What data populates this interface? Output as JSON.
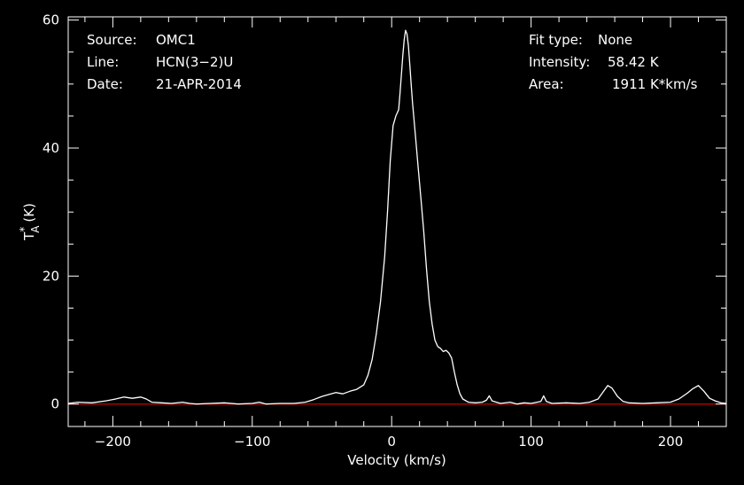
{
  "info": {
    "source_label": "Source:",
    "source_value": "OMC1",
    "line_label": "Line:",
    "line_value": "HCN(3−2)U",
    "date_label": "Date:",
    "date_value": "21-APR-2014",
    "fit_label": "Fit type:",
    "fit_value": "None",
    "intensity_label": "Intensity:",
    "intensity_value": "58.42 K",
    "area_label": "Area:",
    "area_value": "1911 K*km/s"
  },
  "chart_data": {
    "type": "line",
    "xlabel": "Velocity (km/s)",
    "ylabel_main": "T",
    "ylabel_sup": "*",
    "ylabel_sub": "A",
    "ylabel_unit": "(K)",
    "xlim": [
      -232,
      240
    ],
    "ylim": [
      -3.5,
      60.5
    ],
    "xticks": [
      -200,
      -100,
      0,
      100,
      200
    ],
    "xtick_labels": [
      "−200",
      "−100",
      "0",
      "100",
      "200"
    ],
    "yticks": [
      0,
      20,
      40,
      60
    ],
    "ytick_labels": [
      "0",
      "20",
      "40",
      "60"
    ],
    "grid": false,
    "colors": {
      "background": "#000000",
      "trace": "#ffffff",
      "baseline": "#cc0000"
    },
    "series": [
      {
        "x": [
          -232,
          -225,
          -215,
          -205,
          -198,
          -192,
          -186,
          -180,
          -176,
          -172,
          -165,
          -158,
          -150,
          -145,
          -140,
          -130,
          -120,
          -110,
          -100,
          -95,
          -90,
          -80,
          -70,
          -62,
          -56,
          -50,
          -45,
          -40,
          -35,
          -30,
          -25,
          -20,
          -17,
          -14,
          -11,
          -8,
          -5,
          -3,
          -1,
          1,
          3,
          5,
          6,
          7,
          8,
          9,
          10,
          11,
          12,
          13,
          14,
          15,
          17,
          19,
          21,
          23,
          25,
          27,
          29,
          31,
          33,
          35,
          37,
          39,
          41,
          43,
          45,
          47,
          49,
          51,
          55,
          60,
          65,
          68,
          70,
          72,
          78,
          85,
          90,
          95,
          100,
          107,
          109,
          111,
          115,
          125,
          135,
          142,
          148,
          152,
          155,
          158,
          162,
          166,
          170,
          180,
          190,
          200,
          206,
          212,
          216,
          220,
          224,
          228,
          232,
          236,
          240
        ],
        "y": [
          0.1,
          0.3,
          0.2,
          0.5,
          0.8,
          1.1,
          0.9,
          1.1,
          0.8,
          0.3,
          0.2,
          0.1,
          0.3,
          0.1,
          0.0,
          0.1,
          0.2,
          0.0,
          0.1,
          0.3,
          0.0,
          0.1,
          0.1,
          0.3,
          0.7,
          1.2,
          1.5,
          1.8,
          1.6,
          2.0,
          2.3,
          3.0,
          4.5,
          7.0,
          11.0,
          16.0,
          23.0,
          30.0,
          38.0,
          43.5,
          45.0,
          46.0,
          48.5,
          51.5,
          54.5,
          57.0,
          58.4,
          57.8,
          56.0,
          53.0,
          50.0,
          47.0,
          42.0,
          37.0,
          32.0,
          27.0,
          21.0,
          16.0,
          12.5,
          10.0,
          9.0,
          8.7,
          8.2,
          8.4,
          8.0,
          7.2,
          5.0,
          3.0,
          1.6,
          0.8,
          0.3,
          0.2,
          0.3,
          0.6,
          1.3,
          0.5,
          0.1,
          0.3,
          0.0,
          0.2,
          0.1,
          0.4,
          1.3,
          0.4,
          0.1,
          0.2,
          0.1,
          0.3,
          0.8,
          2.0,
          2.9,
          2.5,
          1.2,
          0.4,
          0.2,
          0.1,
          0.2,
          0.3,
          0.8,
          1.7,
          2.4,
          2.9,
          2.0,
          0.9,
          0.5,
          0.2,
          0.1
        ]
      }
    ]
  }
}
